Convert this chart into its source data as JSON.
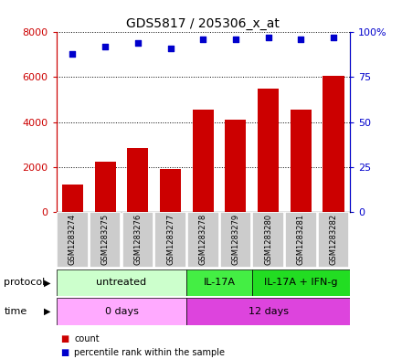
{
  "title": "GDS5817 / 205306_x_at",
  "samples": [
    "GSM1283274",
    "GSM1283275",
    "GSM1283276",
    "GSM1283277",
    "GSM1283278",
    "GSM1283279",
    "GSM1283280",
    "GSM1283281",
    "GSM1283282"
  ],
  "counts": [
    1200,
    2250,
    2850,
    1900,
    4550,
    4100,
    5500,
    4550,
    6050
  ],
  "percentiles": [
    88,
    92,
    94,
    91,
    96,
    96,
    97,
    96,
    97
  ],
  "bar_color": "#cc0000",
  "dot_color": "#0000cc",
  "ylim_left": [
    0,
    8000
  ],
  "ylim_right": [
    0,
    100
  ],
  "yticks_left": [
    0,
    2000,
    4000,
    6000,
    8000
  ],
  "yticks_right": [
    0,
    25,
    50,
    75,
    100
  ],
  "protocol_groups": [
    {
      "label": "untreated",
      "start": 0,
      "end": 4,
      "color": "#ccffcc"
    },
    {
      "label": "IL-17A",
      "start": 4,
      "end": 6,
      "color": "#44ee44"
    },
    {
      "label": "IL-17A + IFN-g",
      "start": 6,
      "end": 9,
      "color": "#22dd22"
    }
  ],
  "time_groups": [
    {
      "label": "0 days",
      "start": 0,
      "end": 4,
      "color": "#ffaaff"
    },
    {
      "label": "12 days",
      "start": 4,
      "end": 9,
      "color": "#dd44dd"
    }
  ],
  "protocol_label": "protocol",
  "time_label": "time",
  "legend_count_color": "#cc0000",
  "legend_dot_color": "#0000cc",
  "background_color": "#ffffff",
  "sample_box_color": "#cccccc",
  "grid_color": "#000000",
  "sample_box_edgecolor": "#aaaaaa"
}
